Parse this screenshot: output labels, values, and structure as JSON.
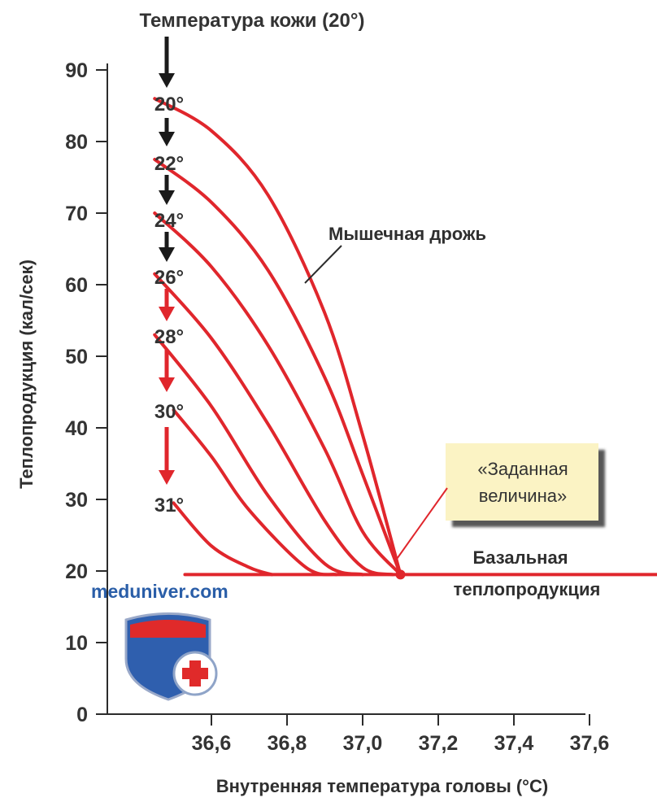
{
  "chart_data": {
    "type": "line",
    "title": "",
    "xlabel": "Внутренняя температура головы (°C)",
    "ylabel": "Теплопродукция (кал/сек)",
    "xlim": [
      36.43,
      37.78
    ],
    "ylim": [
      0,
      95
    ],
    "x_ticks": [
      "36,6",
      "36,8",
      "37,0",
      "37,2",
      "37,4",
      "37,6"
    ],
    "x_tick_values": [
      36.6,
      36.8,
      37.0,
      37.2,
      37.4,
      37.6
    ],
    "y_ticks": [
      "0",
      "10",
      "20",
      "30",
      "40",
      "50",
      "60",
      "70",
      "80",
      "90"
    ],
    "y_tick_values": [
      0,
      10,
      20,
      30,
      40,
      50,
      60,
      70,
      80,
      90
    ],
    "grid": false,
    "legend": "none",
    "series_color": "#e0262c",
    "series": [
      {
        "name": "20°",
        "x": [
          36.45,
          36.6,
          36.75,
          36.9,
          37.0,
          37.1
        ],
        "y": [
          86,
          81.5,
          72.5,
          56,
          39,
          19.5
        ]
      },
      {
        "name": "22°",
        "x": [
          36.45,
          36.6,
          36.75,
          36.9,
          37.0,
          37.1
        ],
        "y": [
          77.5,
          71.5,
          62,
          47,
          33.5,
          19.5
        ]
      },
      {
        "name": "24°",
        "x": [
          36.45,
          36.6,
          36.75,
          36.9,
          37.0,
          37.1
        ],
        "y": [
          70,
          62.5,
          51.5,
          37,
          25.5,
          19.5
        ]
      },
      {
        "name": "26°",
        "x": [
          36.45,
          36.6,
          36.75,
          36.9,
          37.0,
          37.08
        ],
        "y": [
          61.5,
          52.5,
          40.5,
          27,
          20.5,
          19.5
        ]
      },
      {
        "name": "28°",
        "x": [
          36.45,
          36.6,
          36.75,
          36.9,
          37.0
        ],
        "y": [
          53,
          43,
          30.5,
          21,
          19.5
        ]
      },
      {
        "name": "30°",
        "x": [
          36.5,
          36.6,
          36.7,
          36.85,
          36.93
        ],
        "y": [
          42.5,
          36,
          28.5,
          20.5,
          19.5
        ]
      },
      {
        "name": "31°",
        "x": [
          36.5,
          36.6,
          36.7,
          36.76
        ],
        "y": [
          29.5,
          23.5,
          20.5,
          19.5
        ]
      },
      {
        "name": "Базальная теплопродукция",
        "x": [
          36.53,
          37.78
        ],
        "y": [
          19.5,
          19.5
        ]
      }
    ],
    "skin_temperature_title": "Температура кожи (20°)",
    "skin_temperature_labels": [
      "20°",
      "22°",
      "24°",
      "26°",
      "28°",
      "30°",
      "31°"
    ],
    "annotations": {
      "shivering": "Мышечная дрожь",
      "set_point": [
        "«Заданная",
        "величина»"
      ],
      "basal": [
        "Базальная",
        "теплопродукция"
      ]
    },
    "set_point_x": 37.1,
    "set_point_y": 19.5
  },
  "watermark": {
    "text": "meduniver.com"
  }
}
